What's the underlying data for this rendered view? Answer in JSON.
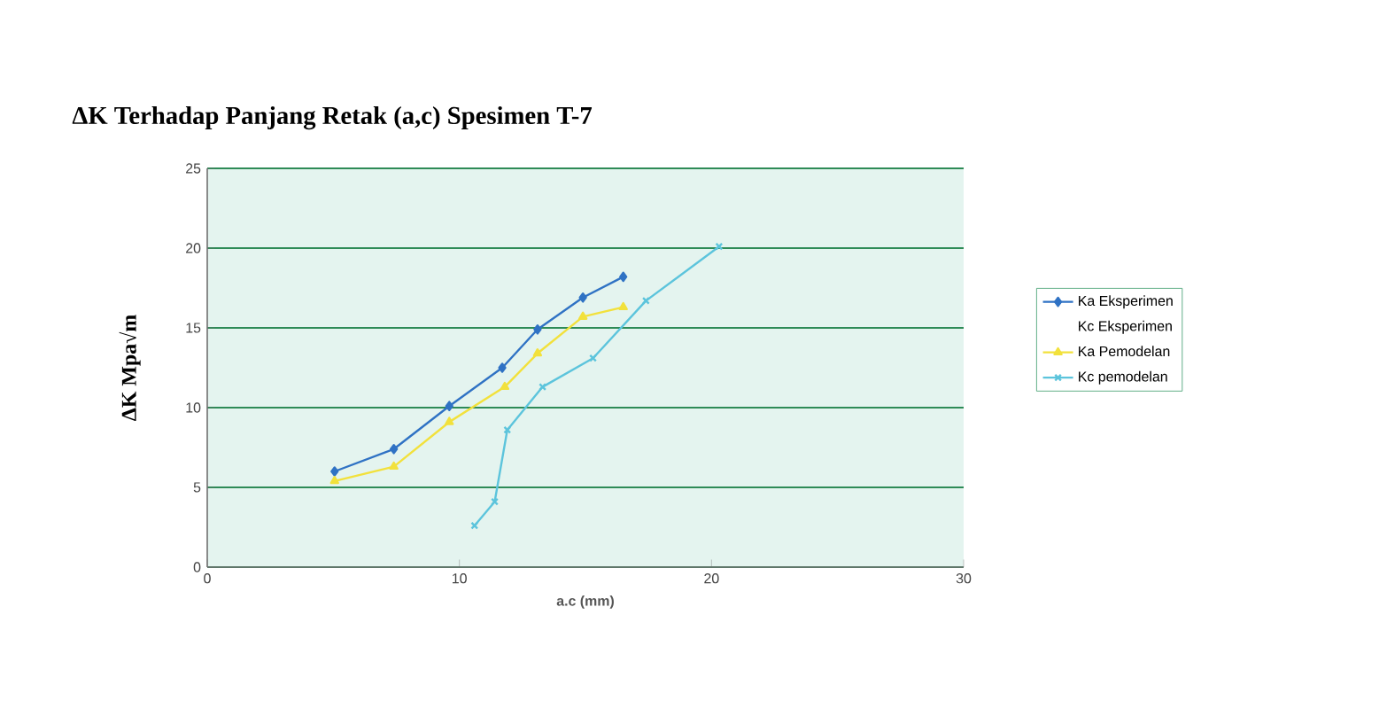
{
  "chart_data": {
    "type": "line",
    "title": "ΔK Terhadap Panjang Retak (a,c) Spesimen T-7",
    "xlabel": "a.c (mm)",
    "ylabel": "ΔK Mpa√m",
    "xlim": [
      0,
      30
    ],
    "xticks": [
      0,
      10,
      20,
      30
    ],
    "ylim": [
      0,
      25
    ],
    "yticks": [
      0,
      5,
      10,
      15,
      20,
      25
    ],
    "grid": "y",
    "legend": "right",
    "series": [
      {
        "name": "Ka Eksperimen",
        "color": "#2f72c4",
        "marker": "diamond",
        "x": [
          5.05,
          7.4,
          9.6,
          11.7,
          13.1,
          14.9,
          16.5
        ],
        "values": [
          6.0,
          7.4,
          10.1,
          12.5,
          14.9,
          16.9,
          18.2
        ]
      },
      {
        "name": "Kc Eksperimen"
      },
      {
        "name": "Ka Pemodelan",
        "color": "#f2e13c",
        "marker": "triangle",
        "x": [
          5.05,
          7.4,
          9.6,
          11.8,
          13.1,
          14.9,
          16.5
        ],
        "values": [
          5.4,
          6.3,
          9.1,
          11.3,
          13.4,
          15.7,
          16.3
        ]
      },
      {
        "name": "Kc pemodelan",
        "color": "#5cc4dc",
        "marker": "cross",
        "x": [
          10.6,
          11.4,
          11.9,
          13.3,
          15.3,
          17.4,
          20.3
        ],
        "values": [
          2.6,
          4.1,
          8.6,
          11.3,
          13.1,
          16.7,
          20.1
        ]
      }
    ]
  }
}
